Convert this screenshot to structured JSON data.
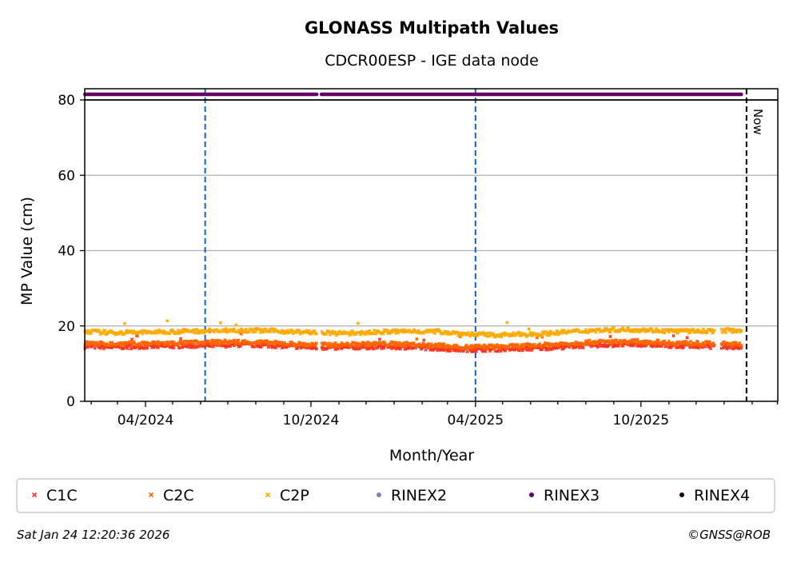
{
  "chart_data": {
    "type": "scatter",
    "title": "GLONASS Multipath Values",
    "subtitle": "CDCR00ESP - IGE data node",
    "xlabel": "Month/Year",
    "ylabel": "MP Value (cm)",
    "ylim": [
      0,
      80
    ],
    "xlim": [
      "2024-01-25",
      "2026-02-14"
    ],
    "yticks": [
      "0",
      "20",
      "40",
      "60",
      "80"
    ],
    "xticks": [
      {
        "date": "2024-04-01",
        "label": "04/2024"
      },
      {
        "date": "2024-10-01",
        "label": "10/2024"
      },
      {
        "date": "2025-04-01",
        "label": "04/2025"
      },
      {
        "date": "2025-10-01",
        "label": "10/2025"
      }
    ],
    "grid": "y",
    "sample_start": "2024-01-25",
    "sample_interval_days": 28,
    "series": [
      {
        "name": "C1C",
        "color": "#ff3322",
        "marker": "x",
        "values": [
          14.6,
          14.4,
          14.5,
          14.6,
          14.7,
          14.8,
          15.0,
          14.9,
          14.6,
          14.3,
          14.2,
          14.4,
          14.5,
          14.3,
          14.0,
          13.7,
          13.8,
          13.9,
          14.1,
          14.5,
          14.9,
          15.0,
          15.1,
          14.8,
          14.6,
          14.5,
          14.4,
          14.2
        ]
      },
      {
        "name": "C2C",
        "color": "#ff6600",
        "marker": "x",
        "values": [
          15.4,
          15.2,
          15.3,
          15.4,
          15.5,
          15.7,
          15.8,
          15.6,
          15.3,
          15.0,
          15.0,
          15.2,
          15.3,
          15.1,
          14.8,
          14.4,
          14.5,
          14.6,
          14.9,
          15.3,
          15.7,
          15.8,
          15.9,
          15.6,
          15.4,
          15.3,
          15.1,
          14.9
        ]
      },
      {
        "name": "C2P",
        "color": "#ffaa00",
        "marker": "x",
        "values": [
          18.6,
          18.2,
          18.3,
          18.4,
          18.6,
          18.7,
          18.9,
          18.8,
          18.5,
          18.3,
          18.0,
          18.2,
          18.5,
          18.6,
          18.5,
          17.9,
          17.6,
          17.7,
          17.9,
          18.4,
          18.8,
          19.0,
          19.0,
          18.7,
          18.6,
          18.7,
          18.9,
          18.6
        ]
      },
      {
        "name": "RINEX2",
        "color": "#8080c0",
        "marker": "o",
        "values": []
      },
      {
        "name": "RINEX3",
        "color": "#660066",
        "marker": "o",
        "strip": true,
        "range": [
          "2024-01-25",
          "2026-01-20"
        ]
      },
      {
        "name": "RINEX4",
        "color": "#1a0010",
        "marker": "o",
        "values": []
      }
    ],
    "data_end": "2026-01-20",
    "events": [
      {
        "date": "2024-06-06",
        "color": "#1060c0"
      },
      {
        "date": "2025-04-01",
        "color": "#1060c0"
      }
    ],
    "now_marker": {
      "date": "2026-01-24",
      "label": "Now"
    },
    "legend_position": "bottom",
    "footer_left": "Sat Jan 24 12:20:36 2026",
    "footer_right": "©GNSS@ROB"
  }
}
